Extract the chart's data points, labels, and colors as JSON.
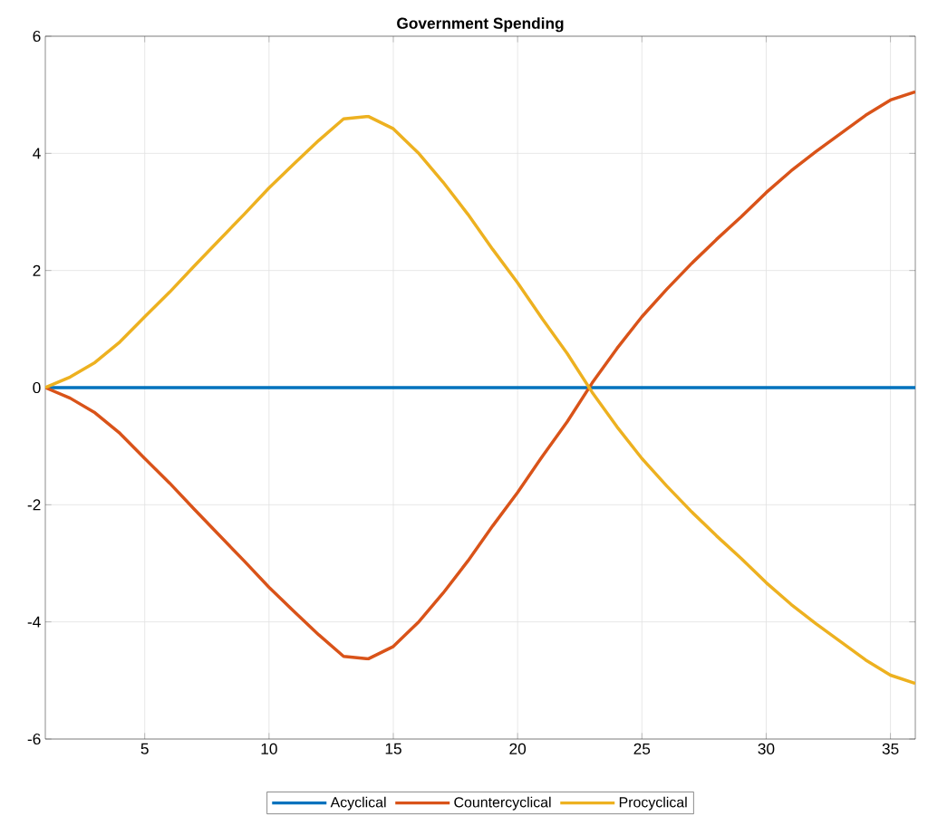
{
  "chart_data": {
    "type": "line",
    "title": "Government Spending",
    "x": [
      1,
      2,
      3,
      4,
      5,
      6,
      7,
      8,
      9,
      10,
      11,
      12,
      13,
      14,
      15,
      16,
      17,
      18,
      19,
      20,
      21,
      22,
      23,
      24,
      25,
      26,
      27,
      28,
      29,
      30,
      31,
      32,
      33,
      34,
      35,
      36
    ],
    "series": [
      {
        "name": "Acyclical",
        "color": "#0072bd",
        "values": [
          0,
          0,
          0,
          0,
          0,
          0,
          0,
          0,
          0,
          0,
          0,
          0,
          0,
          0,
          0,
          0,
          0,
          0,
          0,
          0,
          0,
          0,
          0,
          0,
          0,
          0,
          0,
          0,
          0,
          0,
          0,
          0,
          0,
          0,
          0,
          0
        ]
      },
      {
        "name": "Countercyclical",
        "color": "#d95319",
        "values": [
          0,
          -0.18,
          -0.43,
          -0.78,
          -1.21,
          -1.63,
          -2.08,
          -2.52,
          -2.96,
          -3.41,
          -3.82,
          -4.22,
          -4.59,
          -4.63,
          -4.42,
          -4.01,
          -3.51,
          -2.96,
          -2.36,
          -1.79,
          -1.17,
          -0.58,
          0.08,
          0.67,
          1.21,
          1.68,
          2.12,
          2.53,
          2.92,
          3.33,
          3.7,
          4.03,
          4.34,
          4.65,
          4.91,
          5.05
        ]
      },
      {
        "name": "Procyclical",
        "color": "#edb120",
        "values": [
          0,
          0.18,
          0.43,
          0.78,
          1.21,
          1.63,
          2.08,
          2.52,
          2.96,
          3.41,
          3.82,
          4.22,
          4.59,
          4.63,
          4.42,
          4.01,
          3.51,
          2.96,
          2.36,
          1.79,
          1.17,
          0.58,
          -0.08,
          -0.67,
          -1.21,
          -1.68,
          -2.12,
          -2.53,
          -2.92,
          -3.33,
          -3.7,
          -4.03,
          -4.34,
          -4.65,
          -4.91,
          -5.05
        ]
      }
    ],
    "xlim": [
      1,
      36
    ],
    "ylim": [
      -6,
      6
    ],
    "xticks": [
      5,
      10,
      15,
      20,
      25,
      30,
      35
    ],
    "yticks": [
      -6,
      -4,
      -2,
      0,
      2,
      4,
      6
    ],
    "grid": true,
    "legend": "bottom",
    "marker": "none",
    "line_style": "solid"
  }
}
